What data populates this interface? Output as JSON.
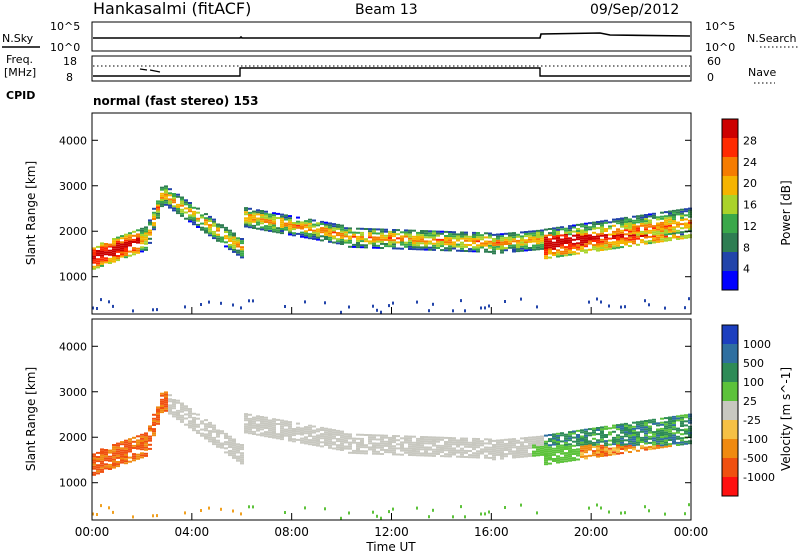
{
  "header": {
    "title": "Hankasalmi (fitACF)",
    "beam": "Beam 13",
    "date": "09/Sep/2012"
  },
  "noise_panel": {
    "left_label": "N.Sky",
    "left_ticks": [
      "10^5",
      "10^0"
    ],
    "right_label": "N.Search",
    "right_ticks": [
      "10^5",
      "10^0"
    ]
  },
  "freq_panel": {
    "left_label_1": "Freq.",
    "left_label_2": "[MHz]",
    "left_ticks": [
      "18",
      "8"
    ],
    "right_label": "Nave",
    "right_ticks": [
      "60",
      "0"
    ],
    "cpid_label": "CPID"
  },
  "mode_text": "normal (fast stereo) 153",
  "chart_data": [
    {
      "type": "heatmap",
      "title": "",
      "ylabel": "Slant Range [km]",
      "ylim": [
        180,
        4600
      ],
      "yticks": [
        "1000",
        "2000",
        "3000",
        "4000"
      ],
      "xlabel": "",
      "colorbar_label": "Power [dB]",
      "colorbar_ticks": [
        "4",
        "8",
        "12",
        "16",
        "20",
        "24",
        "28"
      ],
      "colors": [
        "#0000ff",
        "#2244aa",
        "#2e7d52",
        "#3aa84a",
        "#aad32a",
        "#f5b400",
        "#f57c00",
        "#ff2a00",
        "#cc0000"
      ]
    },
    {
      "type": "heatmap",
      "title": "",
      "ylabel": "Slant Range [km]",
      "ylim": [
        180,
        4600
      ],
      "yticks": [
        "1000",
        "2000",
        "3000",
        "4000"
      ],
      "xlabel": "Time UT",
      "xticks": [
        "00:00",
        "04:00",
        "08:00",
        "12:00",
        "16:00",
        "20:00",
        "00:00"
      ],
      "colorbar_label": "Velocity [m s^-1]",
      "colorbar_ticks": [
        "1000",
        "500",
        "100",
        "25",
        "-25",
        "-100",
        "-500",
        "-1000"
      ],
      "colors": [
        "#1c3fbf",
        "#2f6fa0",
        "#2e8b57",
        "#5cc23a",
        "#c8c8c0",
        "#f5c045",
        "#f08a10",
        "#f05010",
        "#ff1010"
      ]
    }
  ]
}
